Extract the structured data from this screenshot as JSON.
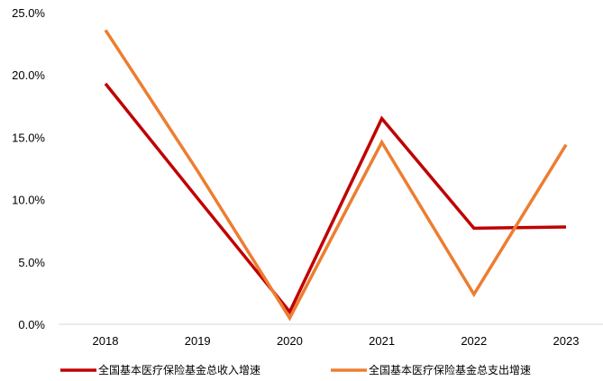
{
  "chart_data": {
    "type": "line",
    "categories": [
      "2018",
      "2019",
      "2020",
      "2021",
      "2022",
      "2023"
    ],
    "x": [
      2018,
      2019,
      2020,
      2021,
      2022,
      2023
    ],
    "ylim": [
      0,
      25
    ],
    "yticks": [
      0,
      5,
      10,
      15,
      20,
      25
    ],
    "ytick_labels": [
      "0.0%",
      "5.0%",
      "10.0%",
      "15.0%",
      "20.0%",
      "25.0%"
    ],
    "grid": false,
    "legend_position": "bottom",
    "series": [
      {
        "name": "全国基本医疗保险基金总收入增速",
        "color": "#C00000",
        "values": [
          19.3,
          10.1,
          1.0,
          16.5,
          7.7,
          7.8
        ]
      },
      {
        "name": "全国基本医疗保险基金总支出增速",
        "color": "#ED7D31",
        "values": [
          23.6,
          12.3,
          0.5,
          14.6,
          2.4,
          14.4
        ]
      }
    ]
  }
}
